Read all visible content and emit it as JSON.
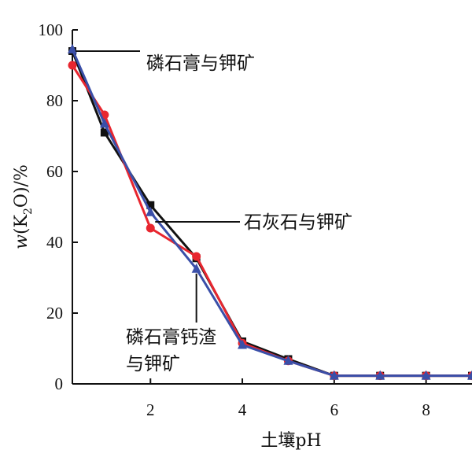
{
  "chart_data": {
    "type": "line",
    "xlabel": "土壤pH",
    "ylabel_main": "w",
    "ylabel_paren_open": "(K",
    "ylabel_sub": "2",
    "ylabel_rest": "O)/%",
    "xlim": [
      0.3,
      9.0
    ],
    "ylim": [
      0,
      100
    ],
    "xticks": [
      2,
      4,
      6,
      8
    ],
    "yticks": [
      0,
      20,
      40,
      60,
      80,
      100
    ],
    "grid": false,
    "x": [
      0.3,
      1,
      2,
      3,
      4,
      5,
      6,
      7,
      8,
      9
    ],
    "series": [
      {
        "color": "#111111",
        "marker": "square",
        "values": [
          94,
          71,
          50.5,
          35.5,
          12,
          7,
          2.3,
          2.3,
          2.3,
          2.3
        ]
      },
      {
        "color": "#e8262f",
        "marker": "circle",
        "values": [
          90,
          76,
          44,
          36,
          11.5,
          6.5,
          2.3,
          2.3,
          2.3,
          2.3
        ]
      },
      {
        "color": "#3a4fa8",
        "marker": "triangle",
        "values": [
          94.5,
          73.5,
          48.5,
          32.5,
          11,
          6.5,
          2.3,
          2.3,
          2.3,
          2.3
        ]
      }
    ],
    "annotations": [
      {
        "lines": [
          "磷石膏与钾矿"
        ]
      },
      {
        "lines": [
          "石灰石与钾矿"
        ]
      },
      {
        "lines": [
          "磷石膏钙渣",
          "与钾矿"
        ]
      }
    ]
  }
}
